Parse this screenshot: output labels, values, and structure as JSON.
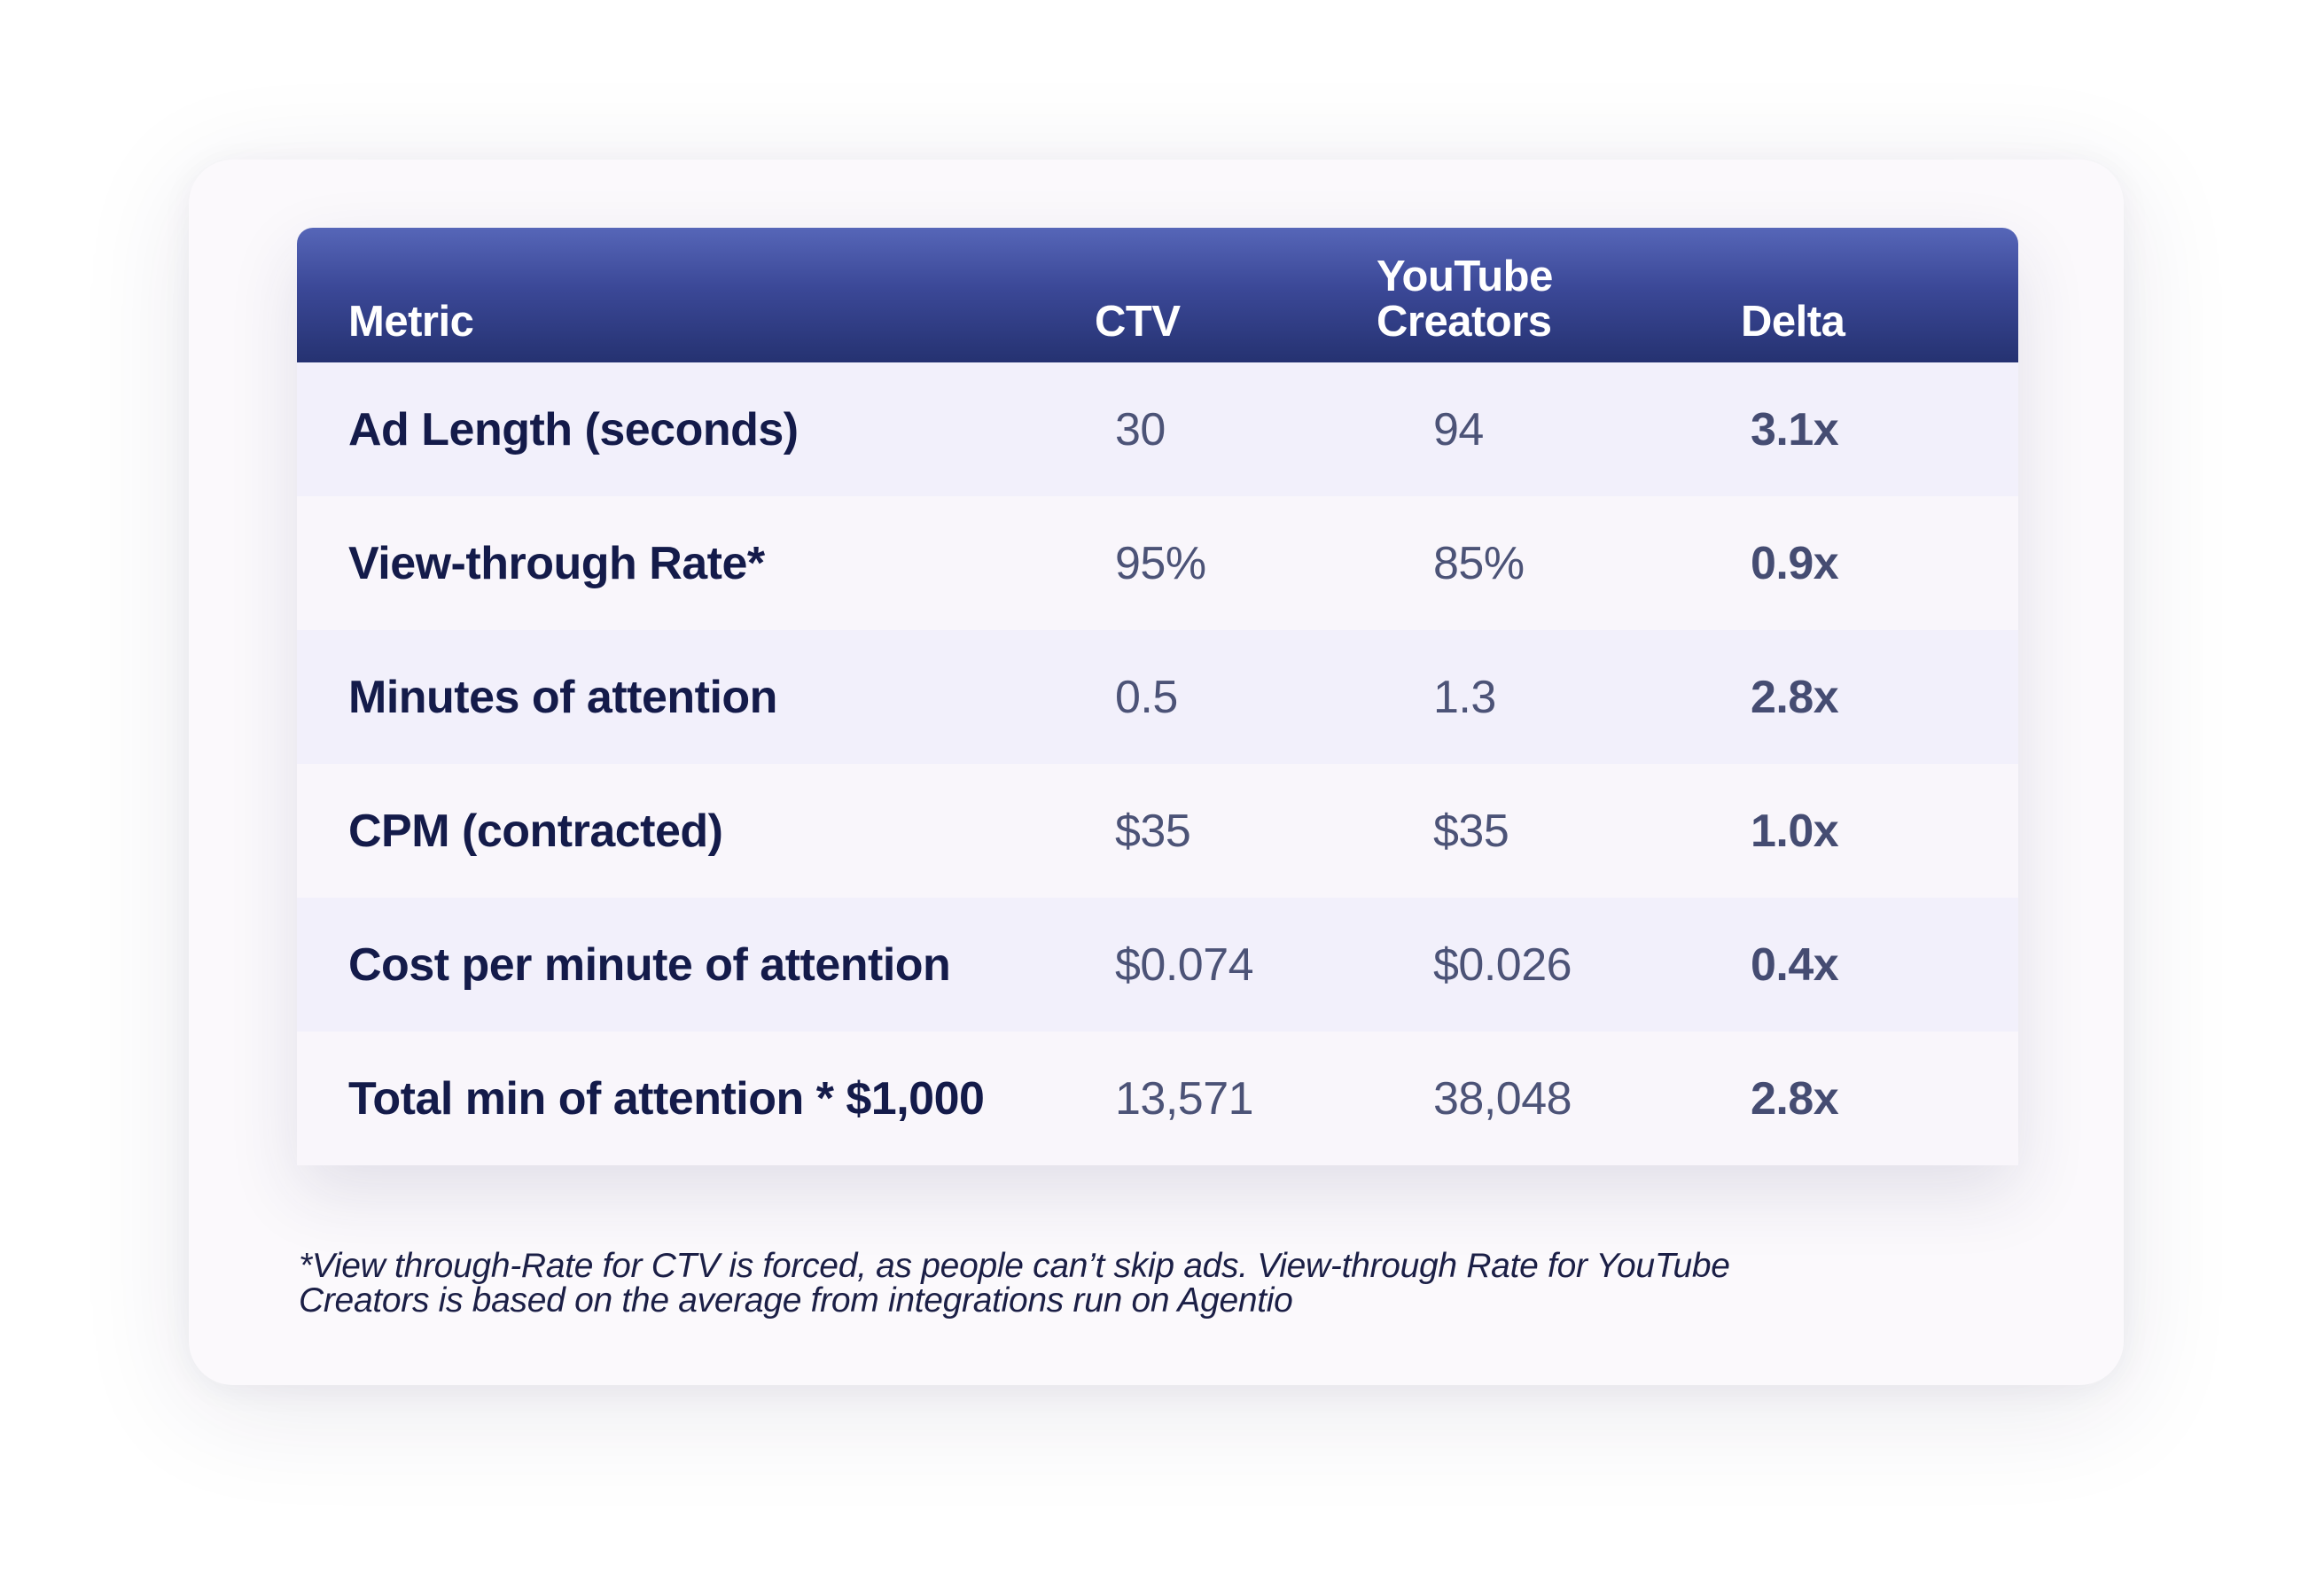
{
  "table": {
    "headers": {
      "metric": "Metric",
      "ctv": "CTV",
      "youtube_line1": "YouTube",
      "youtube_line2": "Creators",
      "delta": "Delta"
    },
    "rows": [
      {
        "metric": "Ad Length (seconds)",
        "ctv": "30",
        "youtube": "94",
        "delta": "3.1x"
      },
      {
        "metric": "View-through Rate*",
        "ctv": "95%",
        "youtube": "85%",
        "delta": "0.9x"
      },
      {
        "metric": "Minutes of attention",
        "ctv": "0.5",
        "youtube": "1.3",
        "delta": "2.8x"
      },
      {
        "metric": "CPM (contracted)",
        "ctv": "$35",
        "youtube": "$35",
        "delta": "1.0x"
      },
      {
        "metric": "Cost per minute of attention",
        "ctv": "$0.074",
        "youtube": "$0.026",
        "delta": "0.4x"
      },
      {
        "metric": "Total min of attention * $1,000",
        "ctv": "13,571",
        "youtube": "38,048",
        "delta": "2.8x"
      }
    ]
  },
  "footnote": {
    "line1": "*View through-Rate for CTV is forced, as people can’t skip ads. View-through Rate for YouTube",
    "line2": "Creators is based on the average from integrations run on Agentio"
  },
  "colors": {
    "header_top": "#5666b8",
    "header_bottom": "#253271",
    "row_alt": "#f2f0fb",
    "row": "#f9f6fb",
    "metric_text": "#141b4a",
    "value_text": "#4c5377"
  }
}
